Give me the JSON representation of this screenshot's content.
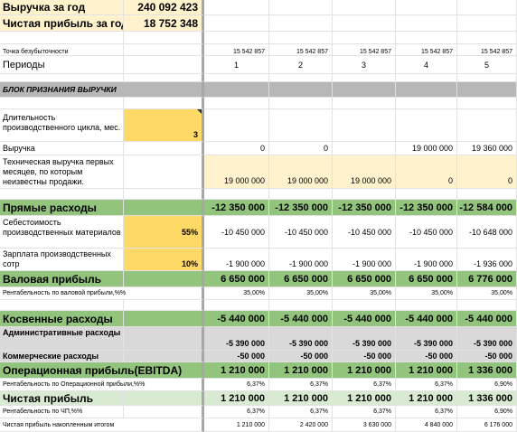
{
  "summary": {
    "revenue_label": "Выручка за год",
    "revenue_value": "240 092 423",
    "profit_label": "Чистая прибыль за год",
    "profit_value": "18 752 348"
  },
  "breakeven": {
    "label": "Точка безубыточности",
    "values": [
      "15 542 857",
      "15 542 857",
      "15 542 857",
      "15 542 857",
      "15 542 857"
    ]
  },
  "periods": {
    "label": "Периоды",
    "values": [
      "1",
      "2",
      "3",
      "4",
      "5"
    ]
  },
  "revenue_block": {
    "label": "БЛОК ПРИЗНАНИЯ ВЫРУЧКИ"
  },
  "cycle": {
    "label": "Длительность производственного цикла, мес.",
    "value": "3"
  },
  "revenue": {
    "label": "Выручка",
    "values": [
      "0",
      "0",
      "",
      "19 000 000",
      "19 360 000"
    ]
  },
  "tech_revenue": {
    "label": "Техническая выручка первых месяцев, по которым неизвестны продажи.",
    "values": [
      "19 000 000",
      "19 000 000",
      "19 000 000",
      "0",
      "0"
    ]
  },
  "direct": {
    "label": "Прямые расходы",
    "values": [
      "-12 350 000",
      "-12 350 000",
      "-12 350 000",
      "-12 350 000",
      "-12 584 000"
    ]
  },
  "cost_materials": {
    "label": "Себестоимость производственных материалов",
    "pct": "55%",
    "values": [
      "-10 450 000",
      "-10 450 000",
      "-10 450 000",
      "-10 450 000",
      "-10 648 000"
    ]
  },
  "salary": {
    "label": "Зарплата производственных сотр",
    "pct": "10%",
    "values": [
      "-1 900 000",
      "-1 900 000",
      "-1 900 000",
      "-1 900 000",
      "-1 936 000"
    ]
  },
  "gross": {
    "label": "Валовая прибыль",
    "values": [
      "6 650 000",
      "6 650 000",
      "6 650 000",
      "6 650 000",
      "6 776 000"
    ]
  },
  "gross_margin": {
    "label": "Рентабельность по валовой прибыли,%%",
    "values": [
      "35,00%",
      "35,00%",
      "35,00%",
      "35,00%",
      "35,00%"
    ]
  },
  "indirect": {
    "label": "Косвенные расходы",
    "values": [
      "-5 440 000",
      "-5 440 000",
      "-5 440 000",
      "-5 440 000",
      "-5 440 000"
    ]
  },
  "admin": {
    "label": "Административные расходы",
    "values": [
      "-5 390 000",
      "-5 390 000",
      "-5 390 000",
      "-5 390 000",
      "-5 390 000"
    ]
  },
  "commercial": {
    "label": "Коммерческие расходы",
    "values": [
      "-50 000",
      "-50 000",
      "-50 000",
      "-50 000",
      "-50 000"
    ]
  },
  "ebitda": {
    "label": "Операционная прибыль(EBITDA)",
    "values": [
      "1 210 000",
      "1 210 000",
      "1 210 000",
      "1 210 000",
      "1 336 000"
    ]
  },
  "ebitda_margin": {
    "label": "Рентабельность по Операционной прибыли,%%",
    "values": [
      "6,37%",
      "6,37%",
      "6,37%",
      "6,37%",
      "6,90%"
    ]
  },
  "net": {
    "label": "Чистая прибыль",
    "values": [
      "1 210 000",
      "1 210 000",
      "1 210 000",
      "1 210 000",
      "1 336 000"
    ]
  },
  "net_margin": {
    "label": "Рентабельность по ЧП,%%",
    "values": [
      "6,37%",
      "6,37%",
      "6,37%",
      "6,37%",
      "6,90%"
    ]
  },
  "net_cum": {
    "label": "Чистая прибыль накопленным итогом",
    "values": [
      "1 210 000",
      "2 420 000",
      "3 630 000",
      "4 840 000",
      "6 176 000"
    ]
  }
}
